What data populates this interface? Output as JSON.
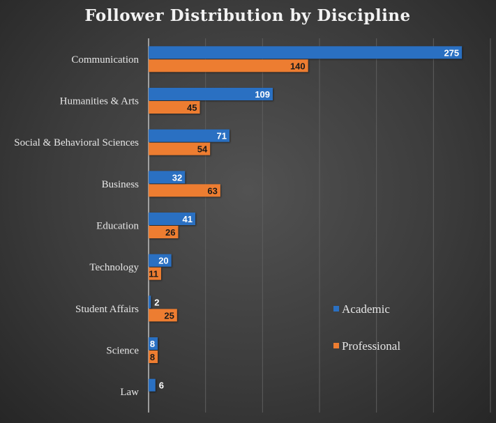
{
  "chart_data": {
    "type": "bar",
    "orientation": "horizontal",
    "title": "Follower Distribution by Discipline",
    "categories": [
      "Communication",
      "Humanities & Arts",
      "Social & Behavioral Sciences",
      "Business",
      "Education",
      "Technology",
      "Student Affairs",
      "Science",
      "Law"
    ],
    "series": [
      {
        "name": "Academic",
        "color": "#2a70c2",
        "values": [
          275,
          109,
          71,
          32,
          41,
          20,
          2,
          8,
          6
        ]
      },
      {
        "name": "Professional",
        "color": "#ed7d31",
        "values": [
          140,
          45,
          54,
          63,
          26,
          11,
          25,
          8,
          null
        ]
      }
    ],
    "xlim": [
      0,
      300
    ],
    "x_grid_step": 50,
    "grid": true,
    "x_tick_labels_shown": false,
    "legend_position": "right",
    "data_labels": true
  }
}
